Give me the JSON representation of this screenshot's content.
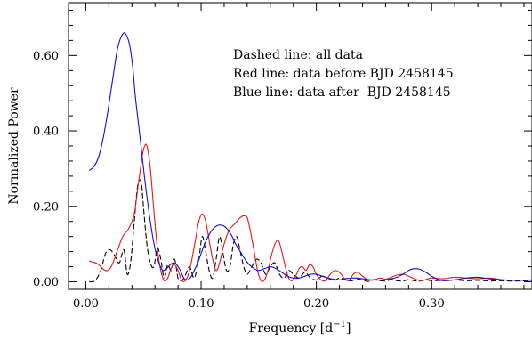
{
  "chart_data": {
    "type": "line",
    "title": "",
    "xlabel": "Frequency",
    "xlabel_unit_base": "[d",
    "xlabel_unit_exp": "−1",
    "xlabel_unit_close": "]",
    "ylabel": "Normalized Power",
    "xlim": [
      -0.015,
      0.387
    ],
    "ylim": [
      -0.02,
      0.74
    ],
    "x_ticks": [
      0.0,
      0.1,
      0.2,
      0.3
    ],
    "x_tick_labels": [
      "0.00",
      "0.10",
      "0.20",
      "0.30"
    ],
    "y_ticks": [
      0.0,
      0.2,
      0.4,
      0.6
    ],
    "y_tick_labels": [
      "0.00",
      "0.20",
      "0.40",
      "0.60"
    ],
    "grid": false,
    "annotations": [
      "Dashed line: all data",
      "Red line: data before BJD 2458145",
      "Blue line: data after  BJD 2458145"
    ],
    "series": [
      {
        "name": "all data",
        "color": "#000000",
        "dash": "dashed",
        "x": [
          0.003,
          0.008,
          0.013,
          0.017,
          0.021,
          0.025,
          0.029,
          0.033,
          0.036,
          0.039,
          0.042,
          0.045,
          0.048,
          0.05,
          0.053,
          0.056,
          0.059,
          0.062,
          0.065,
          0.068,
          0.071,
          0.074,
          0.077,
          0.08,
          0.083,
          0.086,
          0.09,
          0.094,
          0.098,
          0.101,
          0.104,
          0.107,
          0.11,
          0.113,
          0.116,
          0.119,
          0.122,
          0.125,
          0.128,
          0.131,
          0.134,
          0.137,
          0.14,
          0.144,
          0.148,
          0.152,
          0.156,
          0.16,
          0.164,
          0.168,
          0.172,
          0.176,
          0.18,
          0.185,
          0.19,
          0.195,
          0.2,
          0.205,
          0.21,
          0.215,
          0.22,
          0.225,
          0.23,
          0.235,
          0.24,
          0.245,
          0.25,
          0.255,
          0.26,
          0.265,
          0.27,
          0.275,
          0.28,
          0.285,
          0.29,
          0.295,
          0.3,
          0.31,
          0.32,
          0.33,
          0.34,
          0.35,
          0.36,
          0.37,
          0.387
        ],
        "y": [
          0.0,
          0.003,
          0.03,
          0.075,
          0.085,
          0.07,
          0.05,
          0.085,
          0.02,
          0.055,
          0.16,
          0.255,
          0.265,
          0.2,
          0.1,
          0.05,
          0.04,
          0.09,
          0.06,
          0.01,
          0.045,
          0.03,
          0.06,
          0.01,
          0.003,
          0.015,
          0.04,
          0.01,
          0.06,
          0.12,
          0.08,
          0.03,
          0.01,
          0.06,
          0.12,
          0.075,
          0.03,
          0.04,
          0.1,
          0.12,
          0.08,
          0.04,
          0.02,
          0.04,
          0.06,
          0.05,
          0.02,
          0.04,
          0.05,
          0.02,
          0.01,
          0.03,
          0.02,
          0.01,
          0.025,
          0.01,
          0.005,
          0.015,
          0.01,
          0.003,
          0.01,
          0.005,
          0.002,
          0.008,
          0.004,
          0.001,
          0.006,
          0.003,
          0.002,
          0.006,
          0.003,
          0.002,
          0.006,
          0.003,
          0.002,
          0.005,
          0.003,
          0.004,
          0.005,
          0.003,
          0.004,
          0.002,
          0.003,
          0.002,
          0.003
        ]
      },
      {
        "name": "data before BJD 2458145",
        "color": "#e8141b",
        "dash": "solid",
        "x": [
          0.003,
          0.01,
          0.017,
          0.022,
          0.027,
          0.032,
          0.037,
          0.042,
          0.046,
          0.05,
          0.053,
          0.056,
          0.059,
          0.062,
          0.065,
          0.068,
          0.071,
          0.074,
          0.077,
          0.08,
          0.083,
          0.086,
          0.089,
          0.092,
          0.095,
          0.098,
          0.101,
          0.104,
          0.107,
          0.11,
          0.113,
          0.116,
          0.119,
          0.122,
          0.125,
          0.128,
          0.131,
          0.134,
          0.137,
          0.14,
          0.143,
          0.146,
          0.149,
          0.152,
          0.155,
          0.158,
          0.161,
          0.164,
          0.167,
          0.17,
          0.173,
          0.176,
          0.179,
          0.182,
          0.185,
          0.188,
          0.191,
          0.194,
          0.197,
          0.2,
          0.204,
          0.208,
          0.212,
          0.216,
          0.22,
          0.224,
          0.228,
          0.232,
          0.236,
          0.24,
          0.245,
          0.25,
          0.255,
          0.26,
          0.265,
          0.27,
          0.275,
          0.28,
          0.285,
          0.29,
          0.295,
          0.3,
          0.31,
          0.32,
          0.33,
          0.34,
          0.35,
          0.36,
          0.37,
          0.387
        ],
        "y": [
          0.055,
          0.048,
          0.03,
          0.04,
          0.08,
          0.12,
          0.14,
          0.18,
          0.27,
          0.35,
          0.36,
          0.3,
          0.19,
          0.09,
          0.03,
          0.003,
          0.01,
          0.035,
          0.045,
          0.03,
          0.005,
          0.002,
          0.02,
          0.06,
          0.11,
          0.16,
          0.18,
          0.16,
          0.11,
          0.06,
          0.03,
          0.05,
          0.09,
          0.12,
          0.14,
          0.15,
          0.16,
          0.17,
          0.175,
          0.17,
          0.13,
          0.08,
          0.03,
          0.003,
          0.005,
          0.03,
          0.07,
          0.1,
          0.11,
          0.08,
          0.04,
          0.01,
          0.003,
          0.015,
          0.035,
          0.04,
          0.03,
          0.045,
          0.04,
          0.02,
          0.005,
          0.003,
          0.02,
          0.03,
          0.025,
          0.01,
          0.003,
          0.02,
          0.025,
          0.015,
          0.005,
          0.005,
          0.01,
          0.007,
          0.012,
          0.018,
          0.02,
          0.015,
          0.008,
          0.003,
          0.006,
          0.01,
          0.008,
          0.012,
          0.01,
          0.008,
          0.01,
          0.006,
          0.004,
          0.005
        ]
      },
      {
        "name": "data after  BJD 2458145",
        "color": "#1010d8",
        "dash": "solid",
        "x": [
          0.003,
          0.007,
          0.011,
          0.015,
          0.019,
          0.023,
          0.027,
          0.03,
          0.033,
          0.035,
          0.037,
          0.039,
          0.041,
          0.043,
          0.046,
          0.049,
          0.052,
          0.055,
          0.058,
          0.061,
          0.064,
          0.067,
          0.07,
          0.073,
          0.076,
          0.079,
          0.082,
          0.085,
          0.088,
          0.091,
          0.094,
          0.097,
          0.1,
          0.103,
          0.106,
          0.109,
          0.112,
          0.115,
          0.118,
          0.121,
          0.124,
          0.127,
          0.13,
          0.134,
          0.138,
          0.142,
          0.146,
          0.15,
          0.155,
          0.16,
          0.165,
          0.17,
          0.175,
          0.18,
          0.185,
          0.19,
          0.195,
          0.2,
          0.205,
          0.21,
          0.215,
          0.22,
          0.225,
          0.23,
          0.235,
          0.24,
          0.245,
          0.25,
          0.255,
          0.26,
          0.265,
          0.27,
          0.275,
          0.28,
          0.285,
          0.29,
          0.295,
          0.3,
          0.305,
          0.31,
          0.32,
          0.33,
          0.34,
          0.35,
          0.36,
          0.37,
          0.387
        ],
        "y": [
          0.295,
          0.305,
          0.33,
          0.38,
          0.45,
          0.53,
          0.61,
          0.645,
          0.66,
          0.655,
          0.64,
          0.61,
          0.56,
          0.49,
          0.41,
          0.33,
          0.25,
          0.18,
          0.12,
          0.075,
          0.045,
          0.03,
          0.035,
          0.045,
          0.05,
          0.045,
          0.03,
          0.01,
          0.005,
          0.012,
          0.03,
          0.05,
          0.075,
          0.1,
          0.12,
          0.135,
          0.145,
          0.15,
          0.15,
          0.145,
          0.135,
          0.12,
          0.1,
          0.08,
          0.06,
          0.045,
          0.035,
          0.03,
          0.035,
          0.04,
          0.035,
          0.025,
          0.015,
          0.01,
          0.01,
          0.015,
          0.02,
          0.02,
          0.015,
          0.01,
          0.007,
          0.005,
          0.008,
          0.01,
          0.01,
          0.008,
          0.006,
          0.005,
          0.004,
          0.005,
          0.008,
          0.012,
          0.02,
          0.03,
          0.035,
          0.033,
          0.025,
          0.015,
          0.007,
          0.003,
          0.005,
          0.01,
          0.012,
          0.008,
          0.005,
          0.004,
          0.004
        ]
      }
    ]
  }
}
